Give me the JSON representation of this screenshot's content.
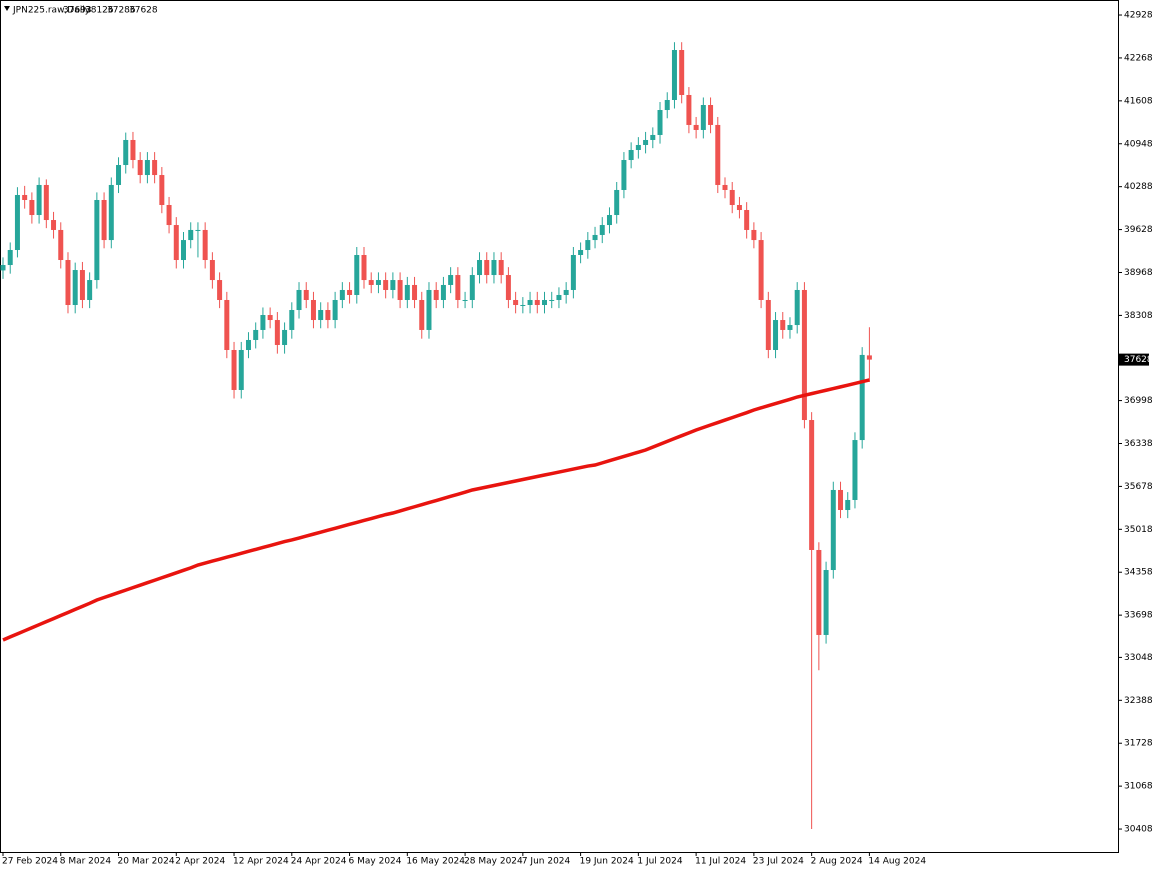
{
  "chart_data": {
    "type": "candlestick",
    "title": "JPN225.raw,Daily",
    "categories": [
      "27 Feb 2024",
      null,
      null,
      null,
      null,
      null,
      null,
      null,
      "8 Mar 2024",
      null,
      null,
      null,
      null,
      null,
      null,
      null,
      "20 Mar 2024",
      null,
      null,
      null,
      null,
      null,
      null,
      null,
      "2 Apr 2024",
      null,
      null,
      null,
      null,
      null,
      null,
      null,
      "12 Apr 2024",
      null,
      null,
      null,
      null,
      null,
      null,
      null,
      "24 Apr 2024",
      null,
      null,
      null,
      null,
      null,
      null,
      null,
      "6 May 2024",
      null,
      null,
      null,
      null,
      null,
      null,
      null,
      "16 May 2024",
      null,
      null,
      null,
      null,
      null,
      null,
      null,
      "28 May 2024",
      null,
      null,
      null,
      null,
      null,
      null,
      null,
      "7 Jun 2024",
      null,
      null,
      null,
      null,
      null,
      null,
      null,
      "19 Jun 2024",
      null,
      null,
      null,
      null,
      null,
      null,
      null,
      "1 Jul 2024",
      null,
      null,
      null,
      null,
      null,
      null,
      null,
      "11 Jul 2024",
      null,
      null,
      null,
      null,
      null,
      null,
      null,
      "23 Jul 2024",
      null,
      null,
      null,
      null,
      null,
      null,
      null,
      "2 Aug 2024",
      null,
      null,
      null,
      null,
      null,
      null,
      null,
      "14 Aug 2024"
    ],
    "ohlc": [
      [
        39000,
        39200,
        38870,
        39083
      ],
      [
        39083,
        39430,
        38950,
        39314
      ],
      [
        39314,
        40280,
        39200,
        40160
      ],
      [
        40160,
        40300,
        39950,
        40083
      ],
      [
        40083,
        40200,
        39720,
        39852
      ],
      [
        39852,
        40430,
        39720,
        40314
      ],
      [
        40314,
        40400,
        39650,
        39775
      ],
      [
        39775,
        39900,
        39490,
        39622
      ],
      [
        39622,
        39740,
        39030,
        39160
      ],
      [
        39160,
        39280,
        38340,
        38468
      ],
      [
        38468,
        39120,
        38340,
        39006
      ],
      [
        39006,
        39130,
        38420,
        38545
      ],
      [
        38545,
        38970,
        38420,
        38852
      ],
      [
        38852,
        40200,
        38720,
        40083
      ],
      [
        40083,
        40200,
        39340,
        39467
      ],
      [
        39467,
        40430,
        39340,
        40314
      ],
      [
        40314,
        40740,
        40190,
        40621
      ],
      [
        40621,
        41120,
        40490,
        41006
      ],
      [
        41006,
        41130,
        40570,
        40698
      ],
      [
        40698,
        40820,
        40340,
        40467
      ],
      [
        40467,
        40820,
        40340,
        40698
      ],
      [
        40698,
        40820,
        40340,
        40467
      ],
      [
        40467,
        40590,
        39880,
        40006
      ],
      [
        40006,
        40130,
        39570,
        39698
      ],
      [
        39698,
        39820,
        39030,
        39160
      ],
      [
        39160,
        39590,
        39030,
        39467
      ],
      [
        39467,
        39740,
        39340,
        39622
      ],
      [
        39622,
        39740,
        39200,
        39622
      ],
      [
        39622,
        39740,
        39030,
        39160
      ],
      [
        39160,
        39280,
        38720,
        38852
      ],
      [
        38852,
        38970,
        38420,
        38545
      ],
      [
        38545,
        38670,
        37650,
        37776
      ],
      [
        37776,
        37900,
        37030,
        37161
      ],
      [
        37161,
        37900,
        37030,
        37776
      ],
      [
        37776,
        38050,
        37650,
        37930
      ],
      [
        37930,
        38200,
        37800,
        38084
      ],
      [
        38084,
        38430,
        37950,
        38314
      ],
      [
        38314,
        38430,
        38110,
        38237
      ],
      [
        38237,
        38360,
        37720,
        37853
      ],
      [
        37853,
        38200,
        37720,
        38084
      ],
      [
        38084,
        38510,
        37950,
        38391
      ],
      [
        38391,
        38820,
        38260,
        38699
      ],
      [
        38699,
        38820,
        38420,
        38545
      ],
      [
        38545,
        38670,
        38110,
        38237
      ],
      [
        38237,
        38510,
        38110,
        38391
      ],
      [
        38391,
        38510,
        38110,
        38237
      ],
      [
        38237,
        38670,
        38110,
        38545
      ],
      [
        38545,
        38820,
        38420,
        38699
      ],
      [
        38699,
        38820,
        38490,
        38622
      ],
      [
        38622,
        39360,
        38490,
        39237
      ],
      [
        39237,
        39360,
        38720,
        38852
      ],
      [
        38852,
        38970,
        38650,
        38776
      ],
      [
        38776,
        38970,
        38650,
        38852
      ],
      [
        38852,
        38970,
        38570,
        38699
      ],
      [
        38699,
        38970,
        38570,
        38852
      ],
      [
        38852,
        38970,
        38420,
        38545
      ],
      [
        38545,
        38900,
        38420,
        38776
      ],
      [
        38776,
        38900,
        38420,
        38545
      ],
      [
        38545,
        38670,
        37950,
        38084
      ],
      [
        38084,
        38820,
        37950,
        38699
      ],
      [
        38699,
        38820,
        38420,
        38545
      ],
      [
        38545,
        38900,
        38420,
        38776
      ],
      [
        38776,
        39050,
        38650,
        38929
      ],
      [
        38929,
        39050,
        38420,
        38545
      ],
      [
        38545,
        38670,
        38420,
        38545
      ],
      [
        38545,
        39050,
        38420,
        38929
      ],
      [
        38929,
        39280,
        38800,
        39160
      ],
      [
        39160,
        39280,
        38800,
        38929
      ],
      [
        38929,
        39280,
        38800,
        39160
      ],
      [
        39160,
        39280,
        38800,
        38929
      ],
      [
        38929,
        39050,
        38420,
        38545
      ],
      [
        38545,
        38670,
        38340,
        38468
      ],
      [
        38468,
        38590,
        38340,
        38468
      ],
      [
        38468,
        38670,
        38340,
        38545
      ],
      [
        38545,
        38670,
        38340,
        38468
      ],
      [
        38468,
        38670,
        38340,
        38545
      ],
      [
        38545,
        38670,
        38420,
        38545
      ],
      [
        38545,
        38740,
        38420,
        38622
      ],
      [
        38622,
        38820,
        38490,
        38699
      ],
      [
        38699,
        39360,
        38570,
        39237
      ],
      [
        39237,
        39430,
        39110,
        39314
      ],
      [
        39314,
        39590,
        39180,
        39467
      ],
      [
        39467,
        39670,
        39340,
        39545
      ],
      [
        39545,
        39820,
        39420,
        39698
      ],
      [
        39698,
        39970,
        39570,
        39852
      ],
      [
        39852,
        40360,
        39720,
        40237
      ],
      [
        40237,
        40820,
        40110,
        40698
      ],
      [
        40698,
        40970,
        40570,
        40852
      ],
      [
        40852,
        41050,
        40720,
        40929
      ],
      [
        40929,
        41130,
        40800,
        41006
      ],
      [
        41006,
        41200,
        40880,
        41083
      ],
      [
        41083,
        41590,
        40950,
        41467
      ],
      [
        41467,
        41740,
        41340,
        41621
      ],
      [
        41621,
        42510,
        41490,
        42390
      ],
      [
        42390,
        42510,
        41570,
        41698
      ],
      [
        41698,
        41820,
        41110,
        41237
      ],
      [
        41237,
        41360,
        41030,
        41160
      ],
      [
        41160,
        41660,
        41030,
        41544
      ],
      [
        41544,
        41660,
        41110,
        41237
      ],
      [
        41237,
        41360,
        40190,
        40314
      ],
      [
        40314,
        40430,
        40110,
        40237
      ],
      [
        40237,
        40360,
        39880,
        40006
      ],
      [
        40006,
        40130,
        39800,
        39929
      ],
      [
        39929,
        40050,
        39490,
        39622
      ],
      [
        39622,
        39740,
        39340,
        39467
      ],
      [
        39467,
        39590,
        38420,
        38545
      ],
      [
        38545,
        38670,
        37650,
        37776
      ],
      [
        37776,
        38360,
        37650,
        38237
      ],
      [
        38237,
        38360,
        37950,
        38084
      ],
      [
        38084,
        38280,
        37950,
        38160
      ],
      [
        38160,
        38820,
        38030,
        38699
      ],
      [
        38699,
        38820,
        36570,
        36699
      ],
      [
        36699,
        36820,
        30408,
        34700
      ],
      [
        34700,
        34820,
        32850,
        33393
      ],
      [
        33393,
        34520,
        33260,
        34392
      ],
      [
        34392,
        35750,
        34260,
        35623
      ],
      [
        35623,
        35750,
        35190,
        35315
      ],
      [
        35315,
        35590,
        35190,
        35469
      ],
      [
        35469,
        36510,
        35340,
        36391
      ],
      [
        36391,
        37820,
        36260,
        37700
      ],
      [
        37693,
        38126,
        37286,
        37628
      ]
    ],
    "up_color": "#26a69a",
    "down_color": "#ef5350",
    "ma": {
      "color": "#e8140f",
      "values": [
        33316,
        33363,
        33410,
        33457,
        33504,
        33551,
        33598,
        33645,
        33692,
        33739,
        33786,
        33833,
        33880,
        33931,
        33969,
        34007,
        34045,
        34083,
        34121,
        34159,
        34197,
        34235,
        34273,
        34311,
        34349,
        34387,
        34425,
        34469,
        34499,
        34529,
        34559,
        34589,
        34619,
        34649,
        34679,
        34709,
        34739,
        34769,
        34799,
        34829,
        34854,
        34884,
        34914,
        34944,
        34974,
        35004,
        35034,
        35064,
        35094,
        35124,
        35154,
        35184,
        35214,
        35244,
        35269,
        35301,
        35333,
        35365,
        35397,
        35429,
        35461,
        35493,
        35525,
        35557,
        35589,
        35623,
        35646,
        35669,
        35692,
        35715,
        35738,
        35761,
        35784,
        35807,
        35830,
        35853,
        35876,
        35899,
        35922,
        35945,
        35968,
        35991,
        36007,
        36040,
        36073,
        36106,
        36139,
        36172,
        36205,
        36238,
        36282,
        36326,
        36370,
        36414,
        36458,
        36502,
        36546,
        36584,
        36622,
        36660,
        36698,
        36736,
        36774,
        36812,
        36853,
        36886,
        36919,
        36952,
        36985,
        37018,
        37053,
        37079,
        37105,
        37131,
        37157,
        37183,
        37209,
        37235,
        37261,
        37289,
        37315
      ]
    },
    "ylim": [
      30055,
      43159
    ],
    "yticks": [
      42928,
      42268,
      41608,
      40948,
      40288,
      39628,
      38968,
      38308,
      36998,
      36338,
      35678,
      35018,
      34358,
      33698,
      33048,
      32388,
      31728,
      31068,
      30408
    ]
  }
}
